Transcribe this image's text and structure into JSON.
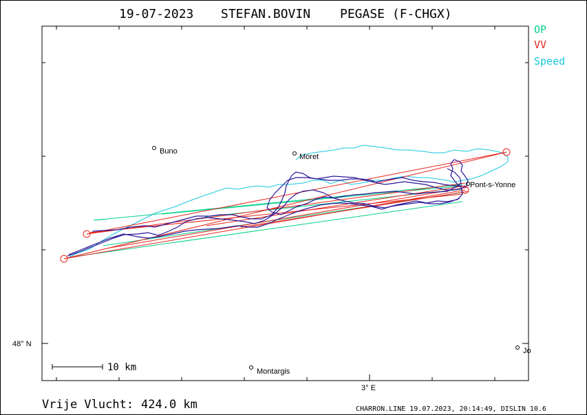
{
  "header": {
    "date": "19-07-2023",
    "pilot": "STEFAN.BOVIN",
    "glider": "PEGASE (F-CHGX)"
  },
  "legend": [
    {
      "label": "OP",
      "color": "#00d28c"
    },
    {
      "label": "VV",
      "color": "#e8241c"
    },
    {
      "label": "Speed",
      "color": "#16c8e0"
    }
  ],
  "towns": [
    {
      "label": "Buno"
    },
    {
      "label": "Moret"
    },
    {
      "label": "Pont-s-Yonne"
    },
    {
      "label": "Montargis"
    },
    {
      "label": "Jo"
    }
  ],
  "axes": {
    "lat_label": "48° N",
    "lon_label": "3° E"
  },
  "scale_bar": {
    "label": "10 km"
  },
  "distance": {
    "label": "Vrije Vlucht:",
    "value": "424.0 km"
  },
  "footer": {
    "text": "CHARRON.LINE 19.07.2023, 20:14:49, DISLIN 10.6"
  },
  "colors": {
    "track": "#2a1696",
    "op": "#00d28c",
    "vv": "#e8241c",
    "speed": "#16c8e0"
  }
}
